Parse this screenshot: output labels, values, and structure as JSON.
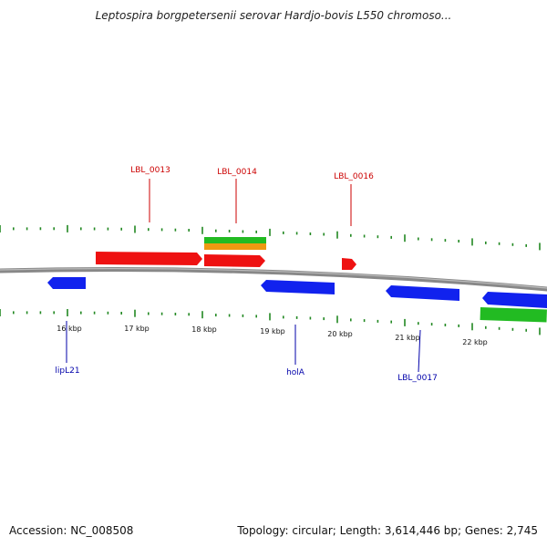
{
  "title": "Leptospira borgpetersenii serovar Hardjo-bovis L550 chromoso...",
  "footer": {
    "accession": "Accession: NC_008508",
    "summary": "Topology: circular; Length: 3,614,446 bp; Genes: 2,745"
  },
  "colors": {
    "label_top": "#cc0000",
    "label_bottom": "#0000aa",
    "tick": "#228822",
    "chromosome": "#888888",
    "red": "#ee1111",
    "blue": "#1122ee",
    "green": "#22bb22",
    "orange": "#ee9911"
  },
  "scale": {
    "unit": "kbp",
    "labels": [
      "16 kbp",
      "17 kbp",
      "18 kbp",
      "19 kbp",
      "20 kbp",
      "21 kbp",
      "22 kbp"
    ]
  },
  "gene_labels_top": [
    "LBL_0013",
    "LBL_0014",
    "LBL_0016"
  ],
  "gene_labels_bottom": [
    "lipL21",
    "holA",
    "LBL_0017"
  ]
}
